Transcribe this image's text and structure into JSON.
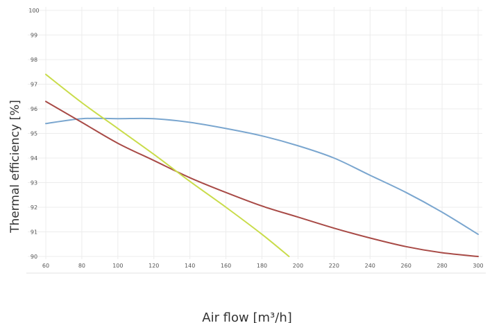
{
  "chart_data": {
    "type": "line",
    "title": "",
    "xlabel": "Air flow [m³/h]",
    "ylabel": "Thermal efficiency [%]",
    "xlim": [
      60,
      300
    ],
    "ylim": [
      90,
      100
    ],
    "x_ticks": [
      60,
      80,
      100,
      120,
      140,
      160,
      180,
      200,
      220,
      240,
      260,
      280,
      300
    ],
    "y_ticks": [
      90,
      91,
      92,
      93,
      94,
      95,
      96,
      97,
      98,
      99,
      100
    ],
    "x_tick_labels": [
      "60",
      "80",
      "100",
      "120",
      "140",
      "160",
      "180",
      "200",
      "220",
      "240",
      "260",
      "280",
      "300"
    ],
    "y_tick_labels": [
      "90",
      "91",
      "92",
      "93",
      "94",
      "95",
      "96",
      "97",
      "98",
      "99",
      "100"
    ],
    "grid": true,
    "legend": "none",
    "series": [
      {
        "color": "#7aa6cf",
        "x": [
          60,
          80,
          100,
          120,
          140,
          160,
          180,
          200,
          220,
          240,
          260,
          280,
          300
        ],
        "y": [
          95.4,
          95.6,
          95.6,
          95.6,
          95.45,
          95.2,
          94.9,
          94.5,
          94.0,
          93.3,
          92.6,
          91.8,
          90.9
        ]
      },
      {
        "color": "#a84a46",
        "x": [
          60,
          80,
          100,
          120,
          140,
          160,
          180,
          200,
          220,
          240,
          260,
          280,
          300
        ],
        "y": [
          96.3,
          95.45,
          94.6,
          93.9,
          93.2,
          92.6,
          92.05,
          91.6,
          91.15,
          90.75,
          90.4,
          90.15,
          90.0
        ]
      },
      {
        "color": "#c9dc4a",
        "x": [
          60,
          80,
          100,
          120,
          140,
          160,
          180,
          195
        ],
        "y": [
          97.4,
          96.25,
          95.2,
          94.15,
          93.05,
          92.0,
          90.9,
          90.0
        ]
      }
    ]
  }
}
